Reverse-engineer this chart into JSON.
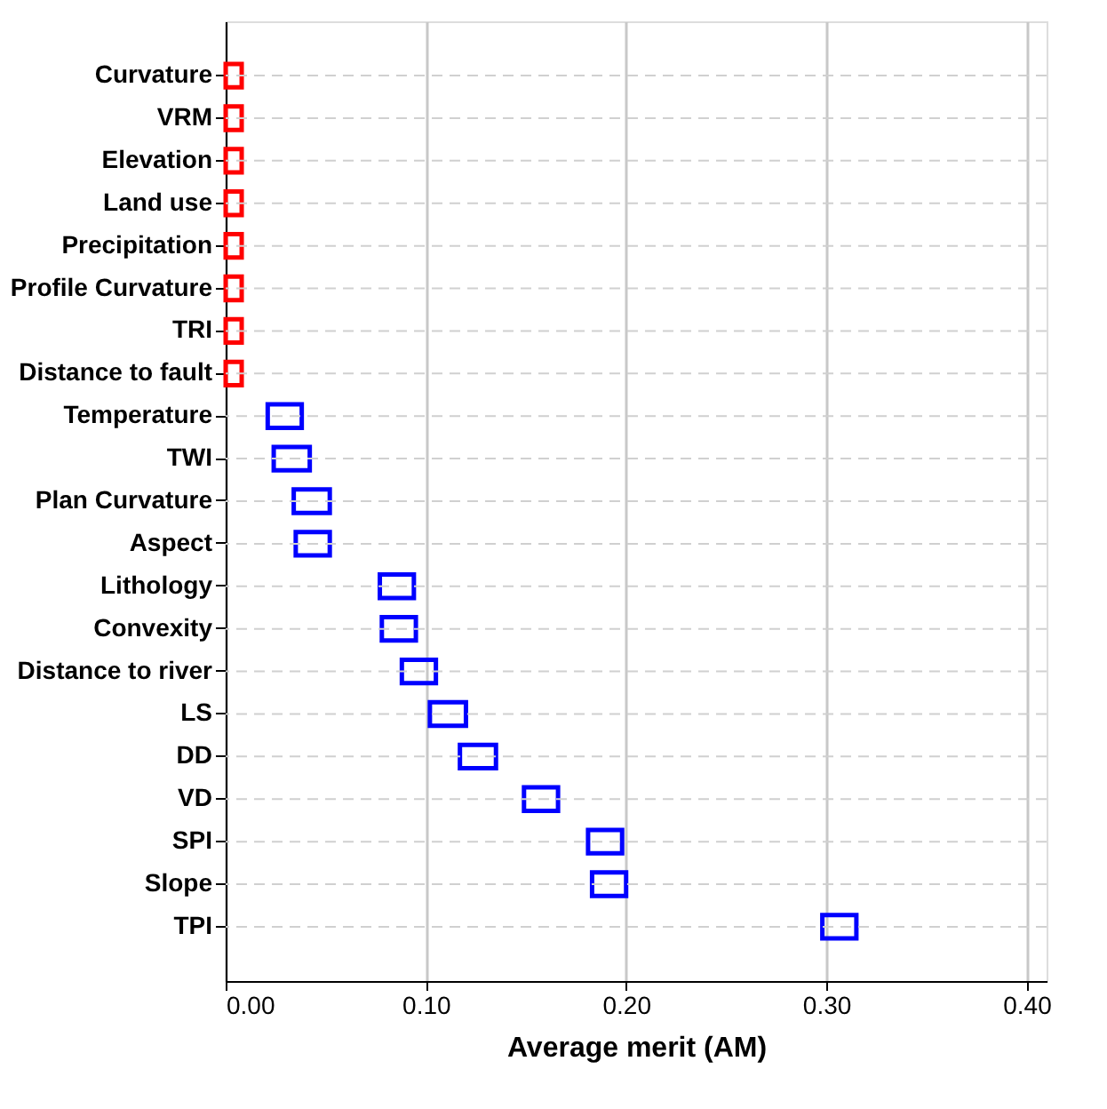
{
  "chart_data": {
    "type": "bar",
    "orientation": "horizontal",
    "xlabel": "Average merit (AM)",
    "categories": [
      "Curvature",
      "VRM",
      "Elevation",
      "Land use",
      "Precipitation",
      "Profile Curvature",
      "TRI",
      "Distance to fault",
      "Temperature",
      "TWI",
      "Plan Curvature",
      "Aspect",
      "Lithology",
      "Convexity",
      "Distance to river",
      "LS",
      "DD",
      "VD",
      "SPI",
      "Slope",
      "TPI"
    ],
    "base": [
      0,
      0,
      0,
      0,
      0,
      0,
      0,
      0,
      0.021,
      0.024,
      0.034,
      0.035,
      0.077,
      0.078,
      0.088,
      0.102,
      0.117,
      0.149,
      0.181,
      0.183,
      0.298
    ],
    "values": [
      0.008,
      0.008,
      0.008,
      0.008,
      0.008,
      0.008,
      0.008,
      0.008,
      0.017,
      0.018,
      0.018,
      0.017,
      0.017,
      0.017,
      0.017,
      0.018,
      0.018,
      0.017,
      0.017,
      0.017,
      0.017
    ],
    "colors": [
      "#ff0000",
      "#ff0000",
      "#ff0000",
      "#ff0000",
      "#ff0000",
      "#ff0000",
      "#ff0000",
      "#ff0000",
      "#0000ff",
      "#0000ff",
      "#0000ff",
      "#0000ff",
      "#0000ff",
      "#0000ff",
      "#0000ff",
      "#0000ff",
      "#0000ff",
      "#0000ff",
      "#0000ff",
      "#0000ff",
      "#0000ff"
    ],
    "xlim": [
      0,
      0.41
    ],
    "xticks": [
      {
        "value": 0,
        "label": "0.00"
      },
      {
        "value": 0.1,
        "label": "0.10"
      },
      {
        "value": 0.2,
        "label": "0.20"
      },
      {
        "value": 0.3,
        "label": "0.30"
      },
      {
        "value": 0.4,
        "label": "0.40"
      }
    ],
    "grid": true
  }
}
